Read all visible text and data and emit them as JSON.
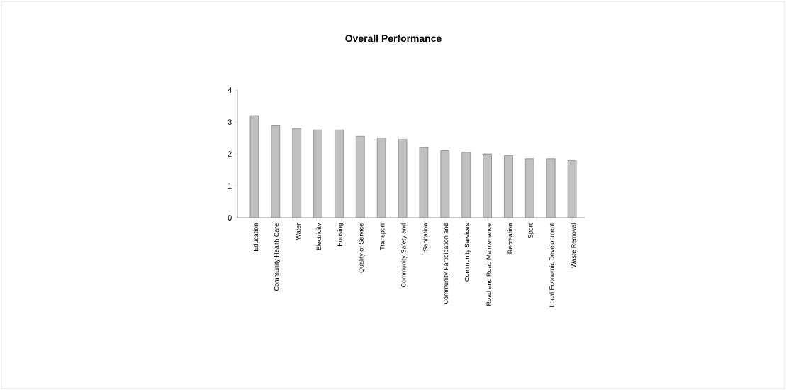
{
  "chart_data": {
    "type": "bar",
    "title": "Overall Performance",
    "categories": [
      "Education",
      "Community Health Care",
      "Water",
      "Electricity",
      "Housing",
      "Quality of Service",
      "Transport",
      "Community Safety and",
      "Sanitation",
      "Community Participation and",
      "Community Services",
      "Road and Road Maintenance",
      "Recreation",
      "Sport",
      "Local Economic Development",
      "Waste Removal"
    ],
    "values": [
      3.2,
      2.9,
      2.8,
      2.75,
      2.75,
      2.55,
      2.5,
      2.45,
      2.2,
      2.1,
      2.05,
      2.0,
      1.95,
      1.85,
      1.85,
      1.8
    ],
    "color": "#c0c0c0",
    "ylim": [
      0,
      4
    ],
    "yticks": [
      0,
      1,
      2,
      3,
      4
    ],
    "grid": false
  }
}
